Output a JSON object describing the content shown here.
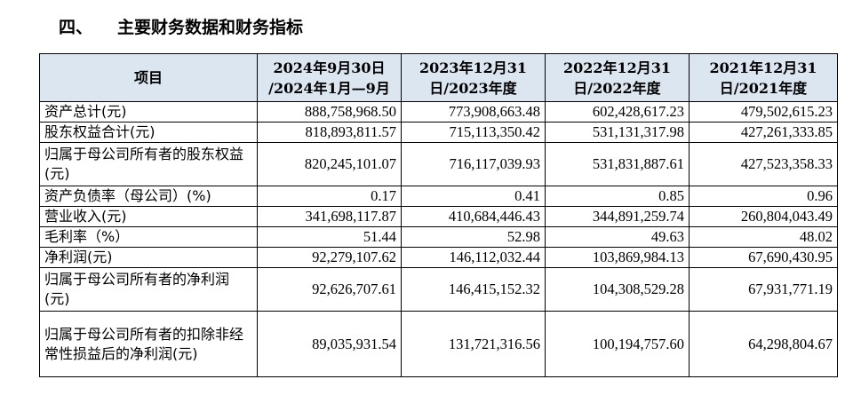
{
  "section": {
    "number": "四、",
    "title": "主要财务数据和财务指标"
  },
  "table": {
    "headers": [
      {
        "line1": "项目",
        "line2": ""
      },
      {
        "line1": "2024年9月30日",
        "line2": "/2024年1月—9月"
      },
      {
        "line1": "2023年12月31",
        "line2": "日/2023年度"
      },
      {
        "line1": "2022年12月31",
        "line2": "日/2022年度"
      },
      {
        "line1": "2021年12月31",
        "line2": "日/2021年度"
      }
    ],
    "rows": [
      {
        "label": "资产总计(元)",
        "values": [
          "888,758,968.50",
          "773,908,663.48",
          "602,428,617.23",
          "479,502,615.23"
        ]
      },
      {
        "label": "股东权益合计(元)",
        "values": [
          "818,893,811.57",
          "715,113,350.42",
          "531,131,317.98",
          "427,261,333.85"
        ]
      },
      {
        "label": "归属于母公司所有者的股东权益(元)",
        "values": [
          "820,245,101.07",
          "716,117,039.93",
          "531,831,887.61",
          "427,523,358.33"
        ]
      },
      {
        "label": "资产负债率（母公司）(%)",
        "values": [
          "0.17",
          "0.41",
          "0.85",
          "0.96"
        ]
      },
      {
        "label": "营业收入(元)",
        "values": [
          "341,698,117.87",
          "410,684,446.43",
          "344,891,259.74",
          "260,804,043.49"
        ]
      },
      {
        "label": "毛利率（%）",
        "values": [
          "51.44",
          "52.98",
          "49.63",
          "48.02"
        ]
      },
      {
        "label": "净利润(元)",
        "values": [
          "92,279,107.62",
          "146,112,032.44",
          "103,869,984.13",
          "67,690,430.95"
        ]
      },
      {
        "label": "归属于母公司所有者的净利润(元)",
        "values": [
          "92,626,707.61",
          "146,415,152.32",
          "104,308,529.28",
          "67,931,771.19"
        ]
      },
      {
        "label": "归属于母公司所有者的扣除非经常性损益后的净利润(元)",
        "values": [
          "89,035,931.54",
          "131,721,316.56",
          "100,194,757.60",
          "64,298,804.67"
        ]
      }
    ]
  }
}
